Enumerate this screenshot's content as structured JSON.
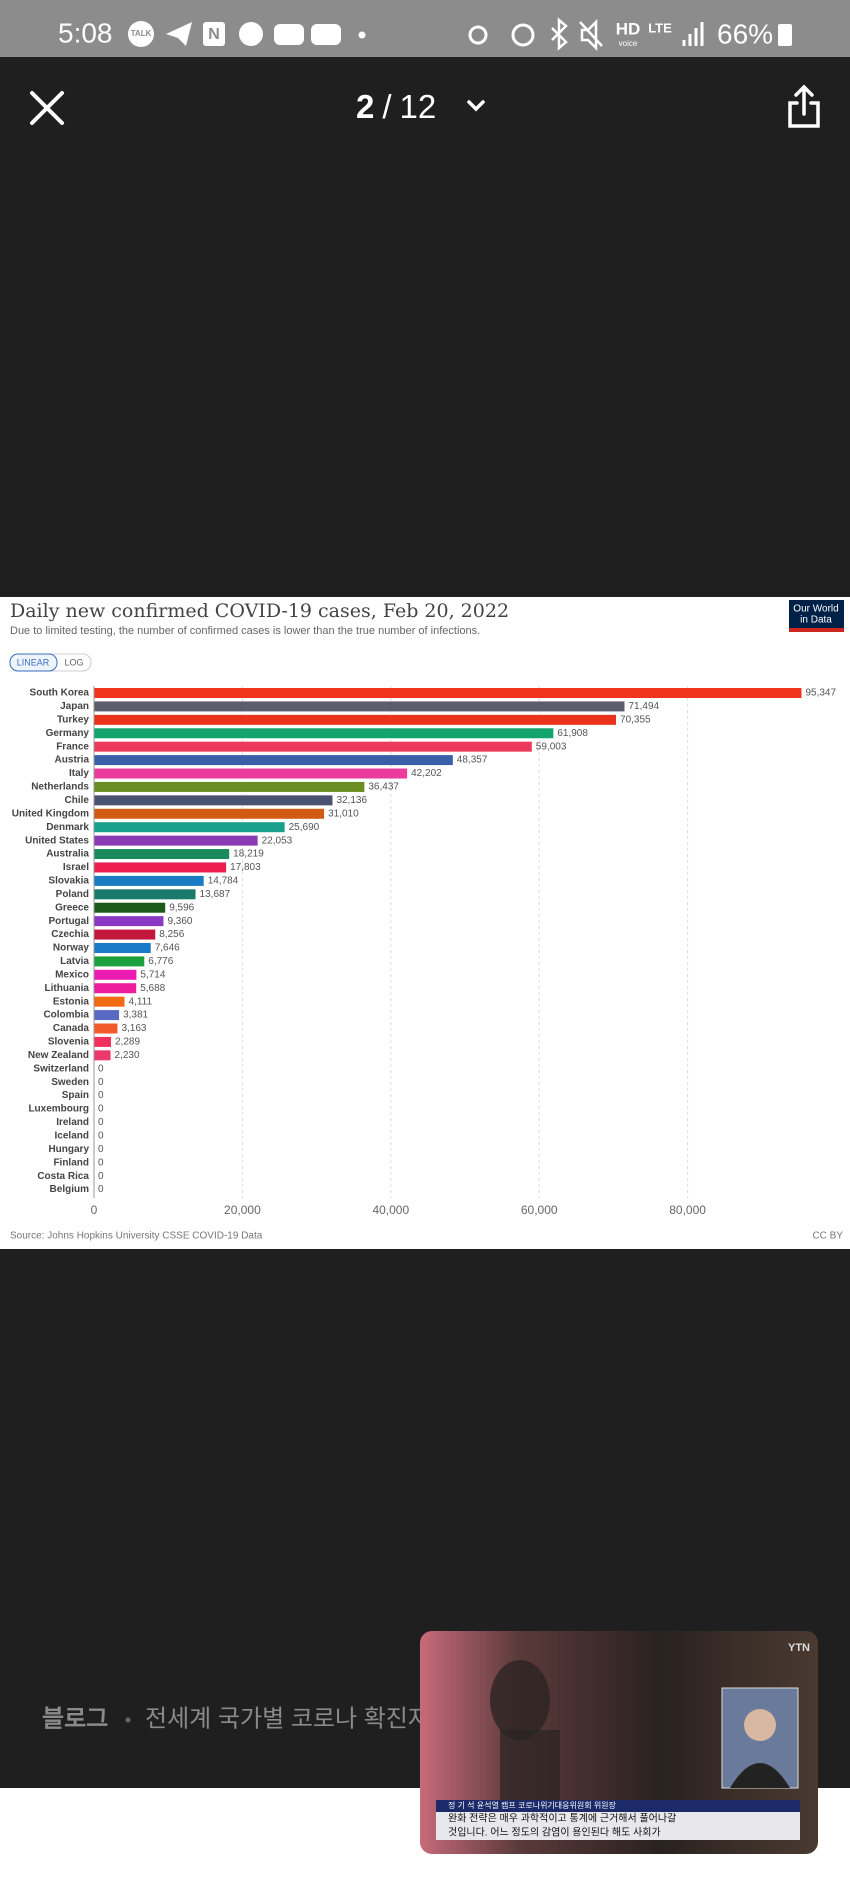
{
  "status_bar": {
    "time": "5:08",
    "talk": "TALK",
    "naver": "N",
    "hd": "HD",
    "voice": "voice",
    "lte": "LTE",
    "battery": "66%"
  },
  "viewer": {
    "current": "2",
    "separator": "/",
    "total": "12"
  },
  "chart_data": {
    "type": "bar",
    "orientation": "horizontal",
    "title": "Daily new confirmed COVID-19 cases, Feb 20, 2022",
    "subtitle": "Due to limited testing, the number of confirmed cases is lower than the true number of infections.",
    "scale_buttons": [
      "LINEAR",
      "LOG"
    ],
    "logo": [
      "Our World",
      "in Data"
    ],
    "source": "Source: Johns Hopkins University CSSE COVID-19 Data",
    "license": "CC BY",
    "categories": [
      "South Korea",
      "Japan",
      "Turkey",
      "Germany",
      "France",
      "Austria",
      "Italy",
      "Netherlands",
      "Chile",
      "United Kingdom",
      "Denmark",
      "United States",
      "Australia",
      "Israel",
      "Slovakia",
      "Poland",
      "Greece",
      "Portugal",
      "Czechia",
      "Norway",
      "Latvia",
      "Mexico",
      "Lithuania",
      "Estonia",
      "Colombia",
      "Canada",
      "Slovenia",
      "New Zealand",
      "Switzerland",
      "Sweden",
      "Spain",
      "Luxembourg",
      "Ireland",
      "Iceland",
      "Hungary",
      "Finland",
      "Costa Rica",
      "Belgium"
    ],
    "values": [
      95347,
      71494,
      70355,
      61908,
      59003,
      48357,
      42202,
      36437,
      32136,
      31010,
      25690,
      22053,
      18219,
      17803,
      14784,
      13687,
      9596,
      9360,
      8256,
      7646,
      6776,
      5714,
      5688,
      4111,
      3381,
      3163,
      2289,
      2230,
      0,
      0,
      0,
      0,
      0,
      0,
      0,
      0,
      0,
      0
    ],
    "value_labels": [
      "95,347",
      "71,494",
      "70,355",
      "61,908",
      "59,003",
      "48,357",
      "42,202",
      "36,437",
      "32,136",
      "31,010",
      "25,690",
      "22,053",
      "18,219",
      "17,803",
      "14,784",
      "13,687",
      "9,596",
      "9,360",
      "8,256",
      "7,646",
      "6,776",
      "5,714",
      "5,688",
      "4,111",
      "3,381",
      "3,163",
      "2,289",
      "2,230",
      "0",
      "0",
      "0",
      "0",
      "0",
      "0",
      "0",
      "0",
      "0",
      "0"
    ],
    "colors": [
      "#f0341c",
      "#5c5c6c",
      "#e8321c",
      "#12a46c",
      "#ec3a5c",
      "#3a5ea8",
      "#ea3a9c",
      "#6b8e23",
      "#4a5272",
      "#d25a12",
      "#18a08c",
      "#8a3ab2",
      "#1a8a5c",
      "#ec1c4c",
      "#1a7ac2",
      "#1a7a6c",
      "#1c5a1c",
      "#8a3ac2",
      "#c2183c",
      "#1a7aca",
      "#1aa03c",
      "#ec1cb2",
      "#ec1c9c",
      "#f26a12",
      "#5a6ac2",
      "#f25a2c",
      "#f2305c",
      "#ec3a6c",
      "#999999",
      "#999999",
      "#999999",
      "#999999",
      "#999999",
      "#999999",
      "#999999",
      "#999999",
      "#999999",
      "#999999"
    ],
    "xlim": [
      0,
      100000
    ],
    "xticks": [
      0,
      {
        "value": 20000,
        "label": "20,000"
      },
      {
        "value": 40000,
        "label": "40,000"
      },
      {
        "value": 60000,
        "label": "60,000"
      },
      {
        "value": 80000,
        "label": "80,000"
      }
    ],
    "grid": true
  },
  "blog": {
    "label": "블로그",
    "title": "전세계 국가별 코로나 확진자"
  },
  "video": {
    "channel": "YTN",
    "name_line": "정 기 석  윤석열 캠프 코로나위기대응위원회 위원장",
    "caption": [
      "완화 전략은 매우 과학적이고 통계에 근거해서 풀어나갈",
      "것입니다. 어느 정도의 감염이 용인된다 해도 사회가"
    ]
  }
}
